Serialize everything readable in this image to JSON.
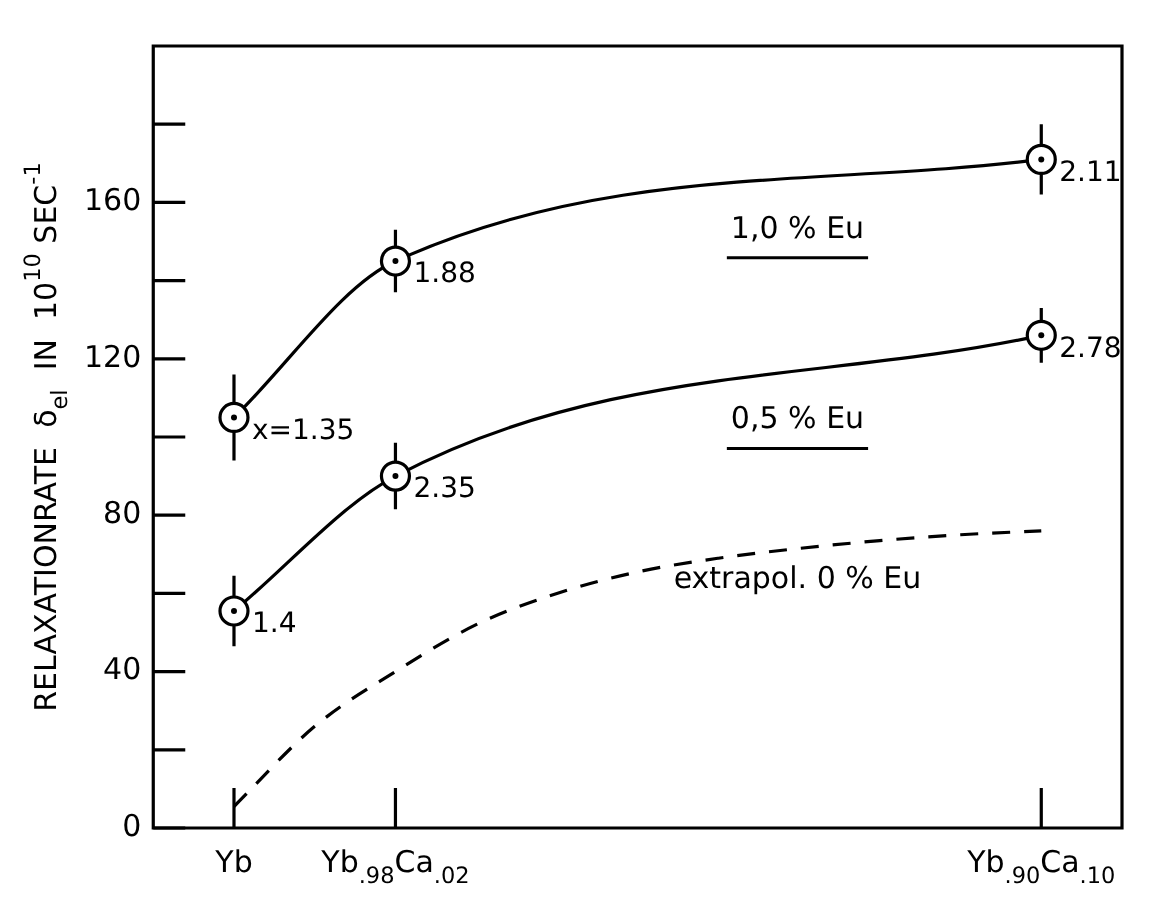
{
  "chart_data": {
    "type": "line",
    "ylabel": "RELAXATIONRATE  δ$_{el}$  IN  10$^{10}$ SEC$^{-1}$",
    "categories": [
      "Yb",
      null,
      "Yb$_{.98}$Ca$_{.02}$",
      null,
      null,
      null,
      null,
      null,
      null,
      null,
      "Yb$_{.90}$Ca$_{.10}$"
    ],
    "ylim": [
      0,
      200
    ],
    "yticks": [
      0,
      {
        "value": 20,
        "label": null
      },
      40,
      {
        "value": 60,
        "label": null
      },
      80,
      {
        "value": 100,
        "label": null
      },
      120,
      {
        "value": 140,
        "label": null
      },
      160,
      {
        "value": 180,
        "label": null
      }
    ],
    "grid": false,
    "legend": false,
    "series": [
      {
        "name": "1,0 % Eu",
        "color": "#000000",
        "marker": "circle",
        "values": [
          105,
          null,
          145,
          null,
          null,
          null,
          null,
          null,
          null,
          null,
          171
        ],
        "errors": [
          11,
          null,
          8,
          null,
          null,
          null,
          null,
          null,
          null,
          null,
          9
        ]
      },
      {
        "name": "0,5 % Eu",
        "color": "#000000",
        "marker": "circle",
        "values": [
          55.5,
          null,
          90,
          null,
          null,
          null,
          null,
          null,
          null,
          null,
          126
        ],
        "errors": [
          9,
          null,
          8.5,
          null,
          null,
          null,
          null,
          null,
          null,
          null,
          7
        ]
      },
      {
        "name": "extrapol. 0 % Eu",
        "color": "#000000",
        "marker": "none",
        "line_style": "dashed",
        "values": [
          5.5,
          26,
          40,
          52,
          60,
          65.5,
          69,
          71.5,
          73.5,
          75,
          76
        ]
      }
    ],
    "annotations": [
      {
        "text": "x=1.35",
        "x": "Yb",
        "y": 105
      },
      {
        "text": "1.88",
        "x": "Yb$_{.98}$Ca$_{.02}$",
        "y": 145
      },
      {
        "text": "2.11",
        "x": "Yb$_{.90}$Ca$_{.10}$",
        "y": 171
      },
      {
        "text": "1.4",
        "x": "Yb",
        "y": 55.5
      },
      {
        "text": "2.35",
        "x": "Yb$_{.98}$Ca$_{.02}$",
        "y": 90
      },
      {
        "text": "2.78",
        "x": "Yb$_{.90}$Ca$_{.10}$",
        "y": 126
      }
    ]
  }
}
